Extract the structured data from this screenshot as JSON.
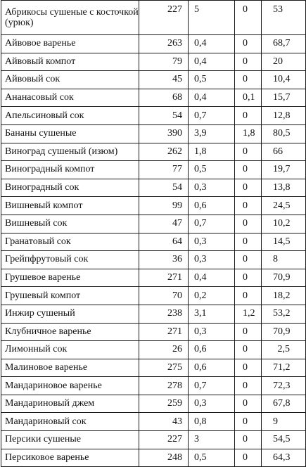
{
  "rows": [
    {
      "name": "Абрикосы сушеные с косточкой (урюк)",
      "v1": "227",
      "v2": "5",
      "v3": "0",
      "v4": "53"
    },
    {
      "name": "Айвовое варенье",
      "v1": "263",
      "v2": "0,4",
      "v3": "0",
      "v4": "68,7"
    },
    {
      "name": "Айвовый компот",
      "v1": "79",
      "v2": "0,4",
      "v3": "0",
      "v4": "20"
    },
    {
      "name": "Айвовый сок",
      "v1": "45",
      "v2": "0,5",
      "v3": "0",
      "v4": "10,4"
    },
    {
      "name": "Ананасовый сок",
      "v1": "68",
      "v2": "0,4",
      "v3": "0,1",
      "v4": "15,7"
    },
    {
      "name": "Апельсиновый сок",
      "v1": "54",
      "v2": "0,7",
      "v3": "0",
      "v4": "12,8"
    },
    {
      "name": "Бананы сушеные",
      "v1": "390",
      "v2": "3,9",
      "v3": "1,8",
      "v4": "80,5"
    },
    {
      "name": "Виноград сушеный (изюм)",
      "v1": "262",
      "v2": "1,8",
      "v3": "0",
      "v4": "66"
    },
    {
      "name": "Виноградный компот",
      "v1": "77",
      "v2": "0,5",
      "v3": "0",
      "v4": "19,7"
    },
    {
      "name": "Виноградный сок",
      "v1": "54",
      "v2": "0,3",
      "v3": "0",
      "v4": "13,8"
    },
    {
      "name": "Вишневый компот",
      "v1": "99",
      "v2": "0,6",
      "v3": "0",
      "v4": "24,5"
    },
    {
      "name": "Вишневый сок",
      "v1": "47",
      "v2": "0,7",
      "v3": "0",
      "v4": "10,2"
    },
    {
      "name": "Гранатовый сок",
      "v1": "64",
      "v2": "0,3",
      "v3": "0",
      "v4": "14,5"
    },
    {
      "name": "Грейпфрутовый сок",
      "v1": "36",
      "v2": "0,3",
      "v3": "0",
      "v4": "8"
    },
    {
      "name": "Грушевое варенье",
      "v1": "271",
      "v2": "0,4",
      "v3": "0",
      "v4": "70,9"
    },
    {
      "name": "Грушевый компот",
      "v1": "70",
      "v2": "0,2",
      "v3": "0",
      "v4": "18,2"
    },
    {
      "name": "Инжир сушеный",
      "v1": "238",
      "v2": "3,1",
      "v3": "1,2",
      "v4": "53,2"
    },
    {
      "name": "Клубничное варенье",
      "v1": "271",
      "v2": "0,3",
      "v3": "0",
      "v4": "70,9"
    },
    {
      "name": "Лимонный сок",
      "v1": "26",
      "v2": "0,6",
      "v3": "0",
      "v4": "2,5"
    },
    {
      "name": "Малиновое варенье",
      "v1": "275",
      "v2": "0,6",
      "v3": "0",
      "v4": "71,2"
    },
    {
      "name": "Мандариновое варенье",
      "v1": "278",
      "v2": "0,7",
      "v3": "0",
      "v4": "72,3"
    },
    {
      "name": "Мандариновый джем",
      "v1": "259",
      "v2": "0,3",
      "v3": "0",
      "v4": "67,8"
    },
    {
      "name": "Мандариновый сок",
      "v1": "43",
      "v2": "0,8",
      "v3": "0",
      "v4": "9"
    },
    {
      "name": "Персики сушеные",
      "v1": "227",
      "v2": "3",
      "v3": "0",
      "v4": "54,5"
    },
    {
      "name": "Персиковое варенье",
      "v1": "248",
      "v2": "0,5",
      "v3": "0",
      "v4": "64,3"
    }
  ]
}
